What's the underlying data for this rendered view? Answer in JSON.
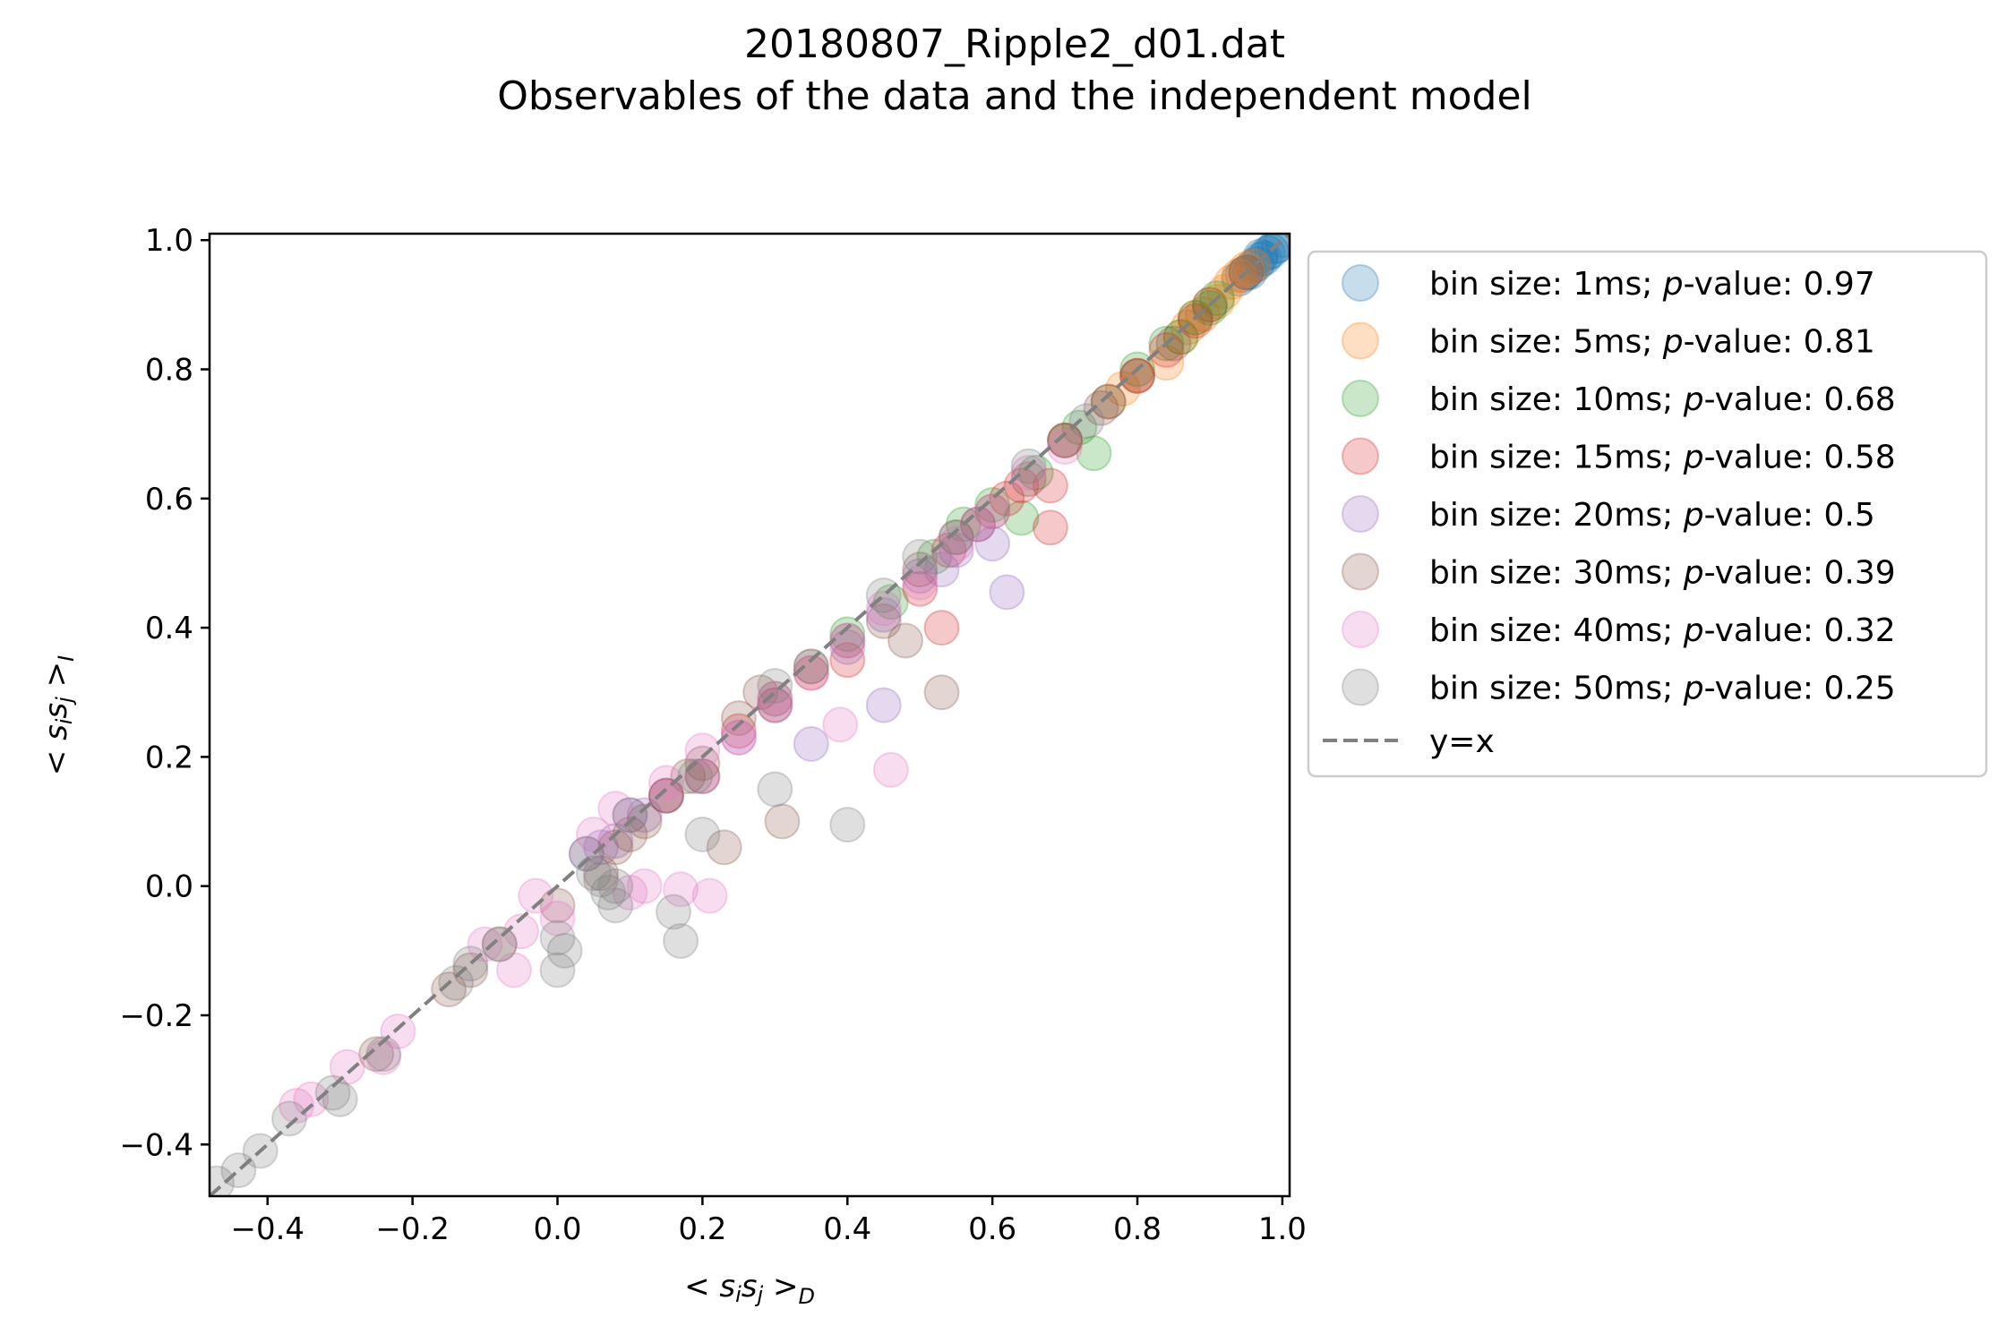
{
  "chart_data": {
    "type": "scatter",
    "title": "20180807_Ripple2_d01.dat",
    "subtitle": "Observables of the data and the independent model",
    "xlabel": "< s_i s_j >_D",
    "ylabel": "< s_i s_j >_I",
    "xlabel_parts": {
      "left": "< ",
      "s1": "s",
      "i": "i",
      "s2": "s",
      "j": "j",
      "right": " >",
      "sub": "D"
    },
    "ylabel_parts": {
      "left": "< ",
      "s1": "s",
      "i": "i",
      "s2": "s",
      "j": "j",
      "right": " >",
      "sub": "I"
    },
    "xlim": [
      -0.48,
      1.01
    ],
    "ylim": [
      -0.48,
      1.01
    ],
    "xticks": [
      -0.4,
      -0.2,
      0.0,
      0.2,
      0.4,
      0.6,
      0.8,
      1.0
    ],
    "yticks": [
      -0.4,
      -0.2,
      0.0,
      0.2,
      0.4,
      0.6,
      0.8,
      1.0
    ],
    "xtick_labels": [
      "−0.4",
      "−0.2",
      "0.0",
      "0.2",
      "0.4",
      "0.6",
      "0.8",
      "1.0"
    ],
    "ytick_labels": [
      "−0.4",
      "−0.2",
      "0.0",
      "0.2",
      "0.4",
      "0.6",
      "0.8",
      "1.0"
    ],
    "grid": false,
    "legend_position": "outside-right-top",
    "reference_line": {
      "label": "y=x",
      "color": "#808080",
      "style": "dashed"
    },
    "series": [
      {
        "name": "1ms",
        "p_value": "0.97",
        "color": "#1f77b4",
        "points": [
          [
            0.94,
            0.94
          ],
          [
            0.95,
            0.95
          ],
          [
            0.96,
            0.96
          ],
          [
            0.97,
            0.97
          ],
          [
            0.98,
            0.98
          ],
          [
            0.99,
            0.99
          ],
          [
            1.0,
            1.0
          ],
          [
            0.955,
            0.95
          ],
          [
            0.965,
            0.963
          ],
          [
            0.975,
            0.972
          ],
          [
            0.985,
            0.983
          ],
          [
            0.995,
            0.992
          ],
          [
            0.945,
            0.946
          ],
          [
            0.97,
            0.975
          ]
        ]
      },
      {
        "name": "5ms",
        "p_value": "0.81",
        "color": "#ff7f0e",
        "points": [
          [
            0.84,
            0.81
          ],
          [
            0.86,
            0.85
          ],
          [
            0.88,
            0.88
          ],
          [
            0.9,
            0.9
          ],
          [
            0.92,
            0.92
          ],
          [
            0.94,
            0.945
          ],
          [
            0.96,
            0.96
          ],
          [
            0.93,
            0.935
          ],
          [
            0.95,
            0.955
          ],
          [
            0.91,
            0.905
          ],
          [
            0.89,
            0.885
          ],
          [
            0.87,
            0.865
          ],
          [
            0.8,
            0.79
          ],
          [
            0.78,
            0.77
          ]
        ]
      },
      {
        "name": "10ms",
        "p_value": "0.68",
        "color": "#2ca02c",
        "points": [
          [
            0.74,
            0.67
          ],
          [
            0.7,
            0.69
          ],
          [
            0.76,
            0.75
          ],
          [
            0.8,
            0.8
          ],
          [
            0.84,
            0.84
          ],
          [
            0.88,
            0.88
          ],
          [
            0.91,
            0.91
          ],
          [
            0.64,
            0.57
          ],
          [
            0.56,
            0.56
          ],
          [
            0.52,
            0.51
          ],
          [
            0.46,
            0.44
          ],
          [
            0.66,
            0.64
          ],
          [
            0.72,
            0.71
          ],
          [
            0.86,
            0.85
          ],
          [
            0.9,
            0.895
          ],
          [
            0.6,
            0.59
          ],
          [
            0.4,
            0.39
          ]
        ]
      },
      {
        "name": "15ms",
        "p_value": "0.58",
        "color": "#d62728",
        "points": [
          [
            0.68,
            0.555
          ],
          [
            0.53,
            0.4
          ],
          [
            0.62,
            0.6
          ],
          [
            0.68,
            0.62
          ],
          [
            0.5,
            0.46
          ],
          [
            0.54,
            0.52
          ],
          [
            0.58,
            0.56
          ],
          [
            0.64,
            0.62
          ],
          [
            0.7,
            0.69
          ],
          [
            0.76,
            0.75
          ],
          [
            0.8,
            0.79
          ],
          [
            0.84,
            0.83
          ],
          [
            0.88,
            0.875
          ],
          [
            0.4,
            0.35
          ],
          [
            0.35,
            0.33
          ],
          [
            0.3,
            0.28
          ],
          [
            0.25,
            0.24
          ],
          [
            0.2,
            0.17
          ],
          [
            0.15,
            0.14
          ]
        ]
      },
      {
        "name": "20ms",
        "p_value": "0.5",
        "color": "#9467bd",
        "points": [
          [
            0.62,
            0.455
          ],
          [
            0.45,
            0.28
          ],
          [
            0.35,
            0.22
          ],
          [
            0.6,
            0.53
          ],
          [
            0.55,
            0.52
          ],
          [
            0.5,
            0.48
          ],
          [
            0.45,
            0.42
          ],
          [
            0.4,
            0.37
          ],
          [
            0.3,
            0.28
          ],
          [
            0.25,
            0.23
          ],
          [
            0.2,
            0.17
          ],
          [
            0.15,
            0.14
          ],
          [
            0.1,
            0.11
          ],
          [
            0.08,
            0.07
          ],
          [
            0.06,
            0.06
          ],
          [
            0.12,
            0.11
          ],
          [
            0.04,
            0.05
          ],
          [
            0.58,
            0.56
          ],
          [
            0.53,
            0.49
          ]
        ]
      },
      {
        "name": "30ms",
        "p_value": "0.39",
        "color": "#8c564b",
        "points": [
          [
            0.53,
            0.3
          ],
          [
            0.31,
            0.1
          ],
          [
            0.23,
            0.06
          ],
          [
            0.48,
            0.38
          ],
          [
            0.45,
            0.41
          ],
          [
            0.4,
            0.38
          ],
          [
            0.35,
            0.34
          ],
          [
            0.3,
            0.29
          ],
          [
            0.28,
            0.3
          ],
          [
            0.25,
            0.26
          ],
          [
            0.2,
            0.19
          ],
          [
            0.18,
            0.17
          ],
          [
            0.15,
            0.14
          ],
          [
            0.12,
            0.1
          ],
          [
            0.1,
            0.08
          ],
          [
            0.08,
            0.06
          ],
          [
            0.06,
            0.02
          ],
          [
            0.0,
            -0.03
          ],
          [
            -0.08,
            -0.09
          ],
          [
            -0.12,
            -0.13
          ],
          [
            -0.15,
            -0.16
          ],
          [
            -0.25,
            -0.26
          ],
          [
            0.5,
            0.49
          ],
          [
            0.55,
            0.54
          ],
          [
            0.6,
            0.58
          ],
          [
            0.65,
            0.63
          ],
          [
            0.7,
            0.69
          ],
          [
            0.75,
            0.74
          ],
          [
            0.8,
            0.79
          ],
          [
            0.85,
            0.84
          ],
          [
            0.9,
            0.9
          ],
          [
            0.95,
            0.95
          ]
        ]
      },
      {
        "name": "40ms",
        "p_value": "0.32",
        "color": "#e377c2",
        "points": [
          [
            0.46,
            0.18
          ],
          [
            0.39,
            0.25
          ],
          [
            0.21,
            -0.015
          ],
          [
            0.17,
            -0.005
          ],
          [
            0.1,
            -0.01
          ],
          [
            0.12,
            0.0
          ],
          [
            -0.03,
            -0.015
          ],
          [
            0.0,
            -0.05
          ],
          [
            -0.06,
            -0.13
          ],
          [
            -0.22,
            -0.225
          ],
          [
            -0.29,
            -0.28
          ],
          [
            -0.34,
            -0.33
          ],
          [
            -0.36,
            -0.34
          ],
          [
            0.05,
            0.08
          ],
          [
            0.08,
            0.12
          ],
          [
            0.15,
            0.16
          ],
          [
            0.2,
            0.21
          ],
          [
            0.25,
            0.23
          ],
          [
            0.3,
            0.29
          ],
          [
            0.35,
            0.33
          ],
          [
            0.4,
            0.38
          ],
          [
            0.45,
            0.43
          ],
          [
            0.5,
            0.47
          ],
          [
            0.55,
            0.53
          ],
          [
            0.6,
            0.58
          ],
          [
            0.65,
            0.64
          ],
          [
            0.7,
            0.68
          ],
          [
            -0.1,
            -0.09
          ],
          [
            -0.05,
            -0.07
          ],
          [
            -0.24,
            -0.265
          ]
        ]
      },
      {
        "name": "50ms",
        "p_value": "0.25",
        "color": "#7f7f7f",
        "points": [
          [
            0.4,
            0.095
          ],
          [
            0.3,
            0.15
          ],
          [
            0.17,
            -0.085
          ],
          [
            0.16,
            -0.04
          ],
          [
            0.08,
            0.0
          ],
          [
            0.07,
            -0.01
          ],
          [
            0.05,
            0.02
          ],
          [
            0.0,
            -0.08
          ],
          [
            0.0,
            -0.13
          ],
          [
            0.01,
            -0.1
          ],
          [
            -0.08,
            -0.09
          ],
          [
            -0.12,
            -0.12
          ],
          [
            -0.14,
            -0.15
          ],
          [
            -0.24,
            -0.26
          ],
          [
            -0.3,
            -0.33
          ],
          [
            -0.31,
            -0.32
          ],
          [
            -0.37,
            -0.36
          ],
          [
            -0.41,
            -0.41
          ],
          [
            -0.44,
            -0.44
          ],
          [
            -0.47,
            -0.46
          ],
          [
            0.04,
            0.05
          ],
          [
            0.1,
            0.11
          ],
          [
            0.19,
            0.17
          ],
          [
            0.2,
            0.08
          ],
          [
            0.3,
            0.31
          ],
          [
            0.35,
            0.34
          ],
          [
            0.45,
            0.45
          ],
          [
            0.5,
            0.51
          ],
          [
            0.55,
            0.54
          ],
          [
            0.65,
            0.65
          ],
          [
            0.73,
            0.72
          ],
          [
            0.08,
            -0.03
          ],
          [
            0.06,
            0.01
          ]
        ]
      }
    ]
  }
}
